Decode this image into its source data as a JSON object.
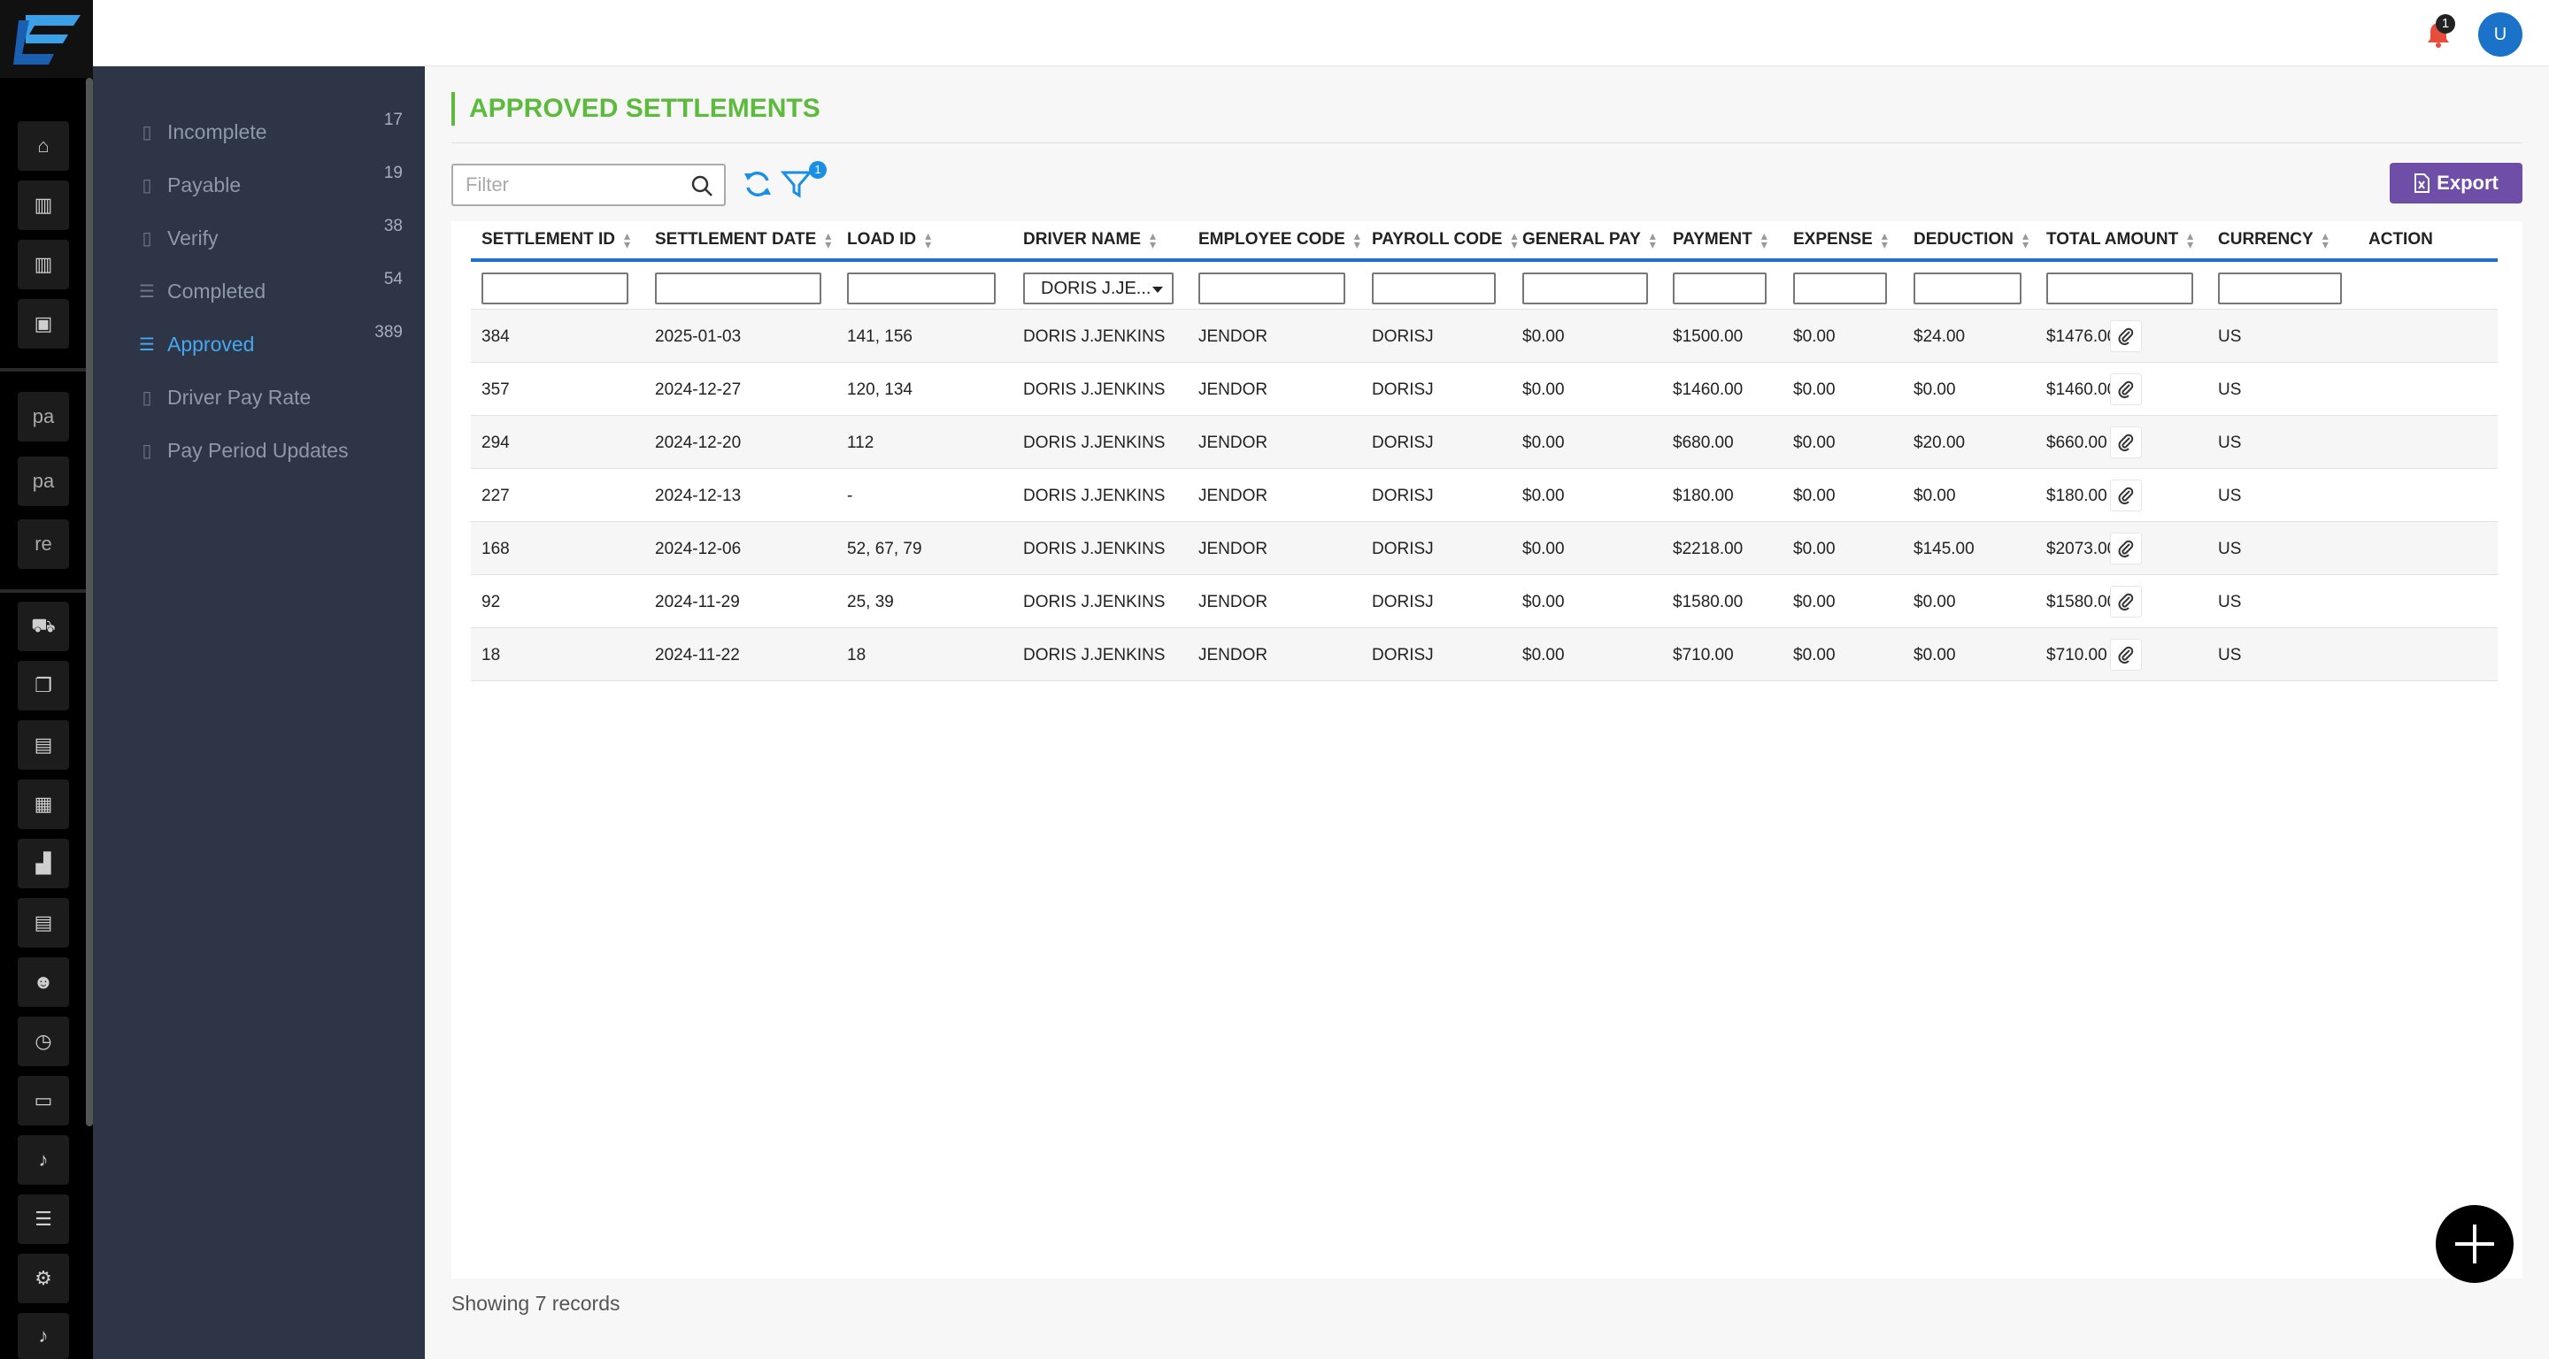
{
  "header": {
    "notifications_count": "1",
    "avatar_initial": "U"
  },
  "rail": {
    "text_items": [
      "pa",
      "pa",
      "re"
    ]
  },
  "subnav": {
    "items": [
      {
        "label": "Incomplete",
        "count": "17",
        "icon": "document-icon",
        "active": false
      },
      {
        "label": "Payable",
        "count": "19",
        "icon": "document-icon",
        "active": false
      },
      {
        "label": "Verify",
        "count": "38",
        "icon": "document-icon",
        "active": false
      },
      {
        "label": "Completed",
        "count": "54",
        "icon": "list-icon",
        "active": false
      },
      {
        "label": "Approved",
        "count": "389",
        "icon": "list-icon",
        "active": true
      },
      {
        "label": "Driver Pay Rate",
        "count": "",
        "icon": "document-icon",
        "active": false
      },
      {
        "label": "Pay Period Updates",
        "count": "",
        "icon": "document-icon",
        "active": false
      }
    ]
  },
  "main": {
    "title": "APPROVED SETTLEMENTS",
    "filter_placeholder": "Filter",
    "filter_badge": "1",
    "export_label": "Export",
    "footer": "Showing 7 records"
  },
  "table": {
    "columns": [
      "SETTLEMENT ID",
      "SETTLEMENT DATE",
      "LOAD ID",
      "DRIVER NAME",
      "EMPLOYEE CODE",
      "PAYROLL CODE",
      "GENERAL PAY",
      "PAYMENT",
      "EXPENSE",
      "DEDUCTION",
      "TOTAL AMOUNT",
      "CURRENCY",
      "ACTION"
    ],
    "driver_filter_value": "DORIS J.JE...",
    "rows": [
      [
        "384",
        "2025-01-03",
        "141, 156",
        "DORIS J.JENKINS",
        "JENDOR",
        "DORISJ",
        "$0.00",
        "$1500.00",
        "$0.00",
        "$24.00",
        "$1476.00",
        "US"
      ],
      [
        "357",
        "2024-12-27",
        "120, 134",
        "DORIS J.JENKINS",
        "JENDOR",
        "DORISJ",
        "$0.00",
        "$1460.00",
        "$0.00",
        "$0.00",
        "$1460.00",
        "US"
      ],
      [
        "294",
        "2024-12-20",
        "112",
        "DORIS J.JENKINS",
        "JENDOR",
        "DORISJ",
        "$0.00",
        "$680.00",
        "$0.00",
        "$20.00",
        "$660.00",
        "US"
      ],
      [
        "227",
        "2024-12-13",
        "-",
        "DORIS J.JENKINS",
        "JENDOR",
        "DORISJ",
        "$0.00",
        "$180.00",
        "$0.00",
        "$0.00",
        "$180.00",
        "US"
      ],
      [
        "168",
        "2024-12-06",
        "52, 67, 79",
        "DORIS J.JENKINS",
        "JENDOR",
        "DORISJ",
        "$0.00",
        "$2218.00",
        "$0.00",
        "$145.00",
        "$2073.00",
        "US"
      ],
      [
        "92",
        "2024-11-29",
        "25, 39",
        "DORIS J.JENKINS",
        "JENDOR",
        "DORISJ",
        "$0.00",
        "$1580.00",
        "$0.00",
        "$0.00",
        "$1580.00",
        "US"
      ],
      [
        "18",
        "2024-11-22",
        "18",
        "DORIS J.JENKINS",
        "JENDOR",
        "DORISJ",
        "$0.00",
        "$710.00",
        "$0.00",
        "$0.00",
        "$710.00",
        "US"
      ]
    ]
  },
  "colors": {
    "accent_green": "#5cba3c",
    "accent_blue": "#1a73c8",
    "export_purple": "#6f4ea8",
    "sidebar_bg": "#2d3547",
    "active_blue": "#46a8f0"
  }
}
